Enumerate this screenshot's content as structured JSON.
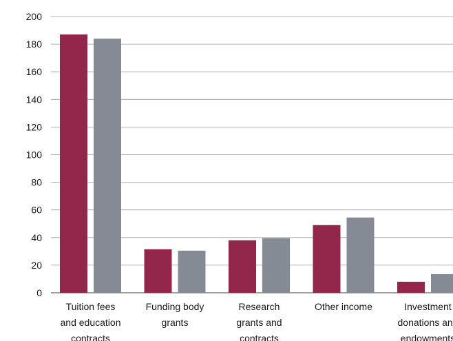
{
  "chart_data": {
    "type": "bar",
    "title": "",
    "xlabel": "",
    "ylabel": "",
    "ylim": [
      0,
      200
    ],
    "yticks": [
      0,
      20,
      40,
      60,
      80,
      100,
      120,
      140,
      160,
      180,
      200
    ],
    "grid": true,
    "legend": "none",
    "categories": [
      [
        "Tuition fees",
        "and education",
        "contracts"
      ],
      [
        "Funding body",
        "grants"
      ],
      [
        "Research",
        "grants and",
        "contracts"
      ],
      [
        "Other income"
      ],
      [
        "Investment",
        "donations and",
        "endowments"
      ]
    ],
    "series": [
      {
        "values": [
          187,
          31.5,
          38,
          49,
          8
        ],
        "color": "#93264b"
      },
      {
        "values": [
          184,
          30.5,
          39.5,
          54.5,
          13.5
        ],
        "color": "#848b95"
      }
    ]
  }
}
